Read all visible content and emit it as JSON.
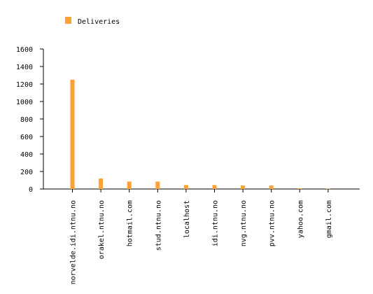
{
  "chart_data": {
    "type": "bar",
    "categories": [
      "norvelde.idi.ntnu.no",
      "orakel.ntnu.no",
      "hotmail.com",
      "stud.ntnu.no",
      "localhost",
      "idi.ntnu.no",
      "nvg.ntnu.no",
      "pvv.ntnu.no",
      "yahoo.com",
      "gmail.com"
    ],
    "series": [
      {
        "name": "Deliveries",
        "values": [
          1250,
          120,
          85,
          85,
          45,
          45,
          40,
          40,
          8,
          5
        ],
        "color": "#ffa033"
      }
    ],
    "ylim": [
      0,
      1600
    ],
    "yticks": [
      0,
      200,
      400,
      600,
      800,
      1000,
      1200,
      1400,
      1600
    ],
    "grid": false,
    "legend": "top-left"
  }
}
